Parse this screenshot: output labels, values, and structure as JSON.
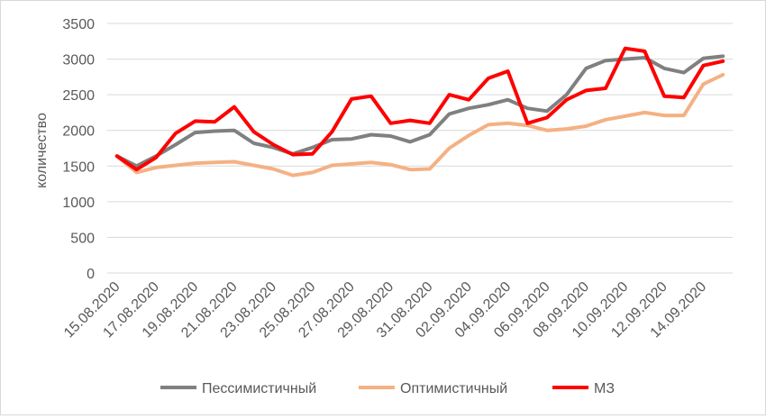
{
  "chart_data": {
    "type": "line",
    "ylabel": "количество",
    "ylim": [
      0,
      3500
    ],
    "yticks": [
      0,
      500,
      1000,
      1500,
      2000,
      2500,
      3000,
      3500
    ],
    "grid": true,
    "legend_position": "bottom",
    "x": [
      "15.08.2020",
      "16.08.2020",
      "17.08.2020",
      "18.08.2020",
      "19.08.2020",
      "20.08.2020",
      "21.08.2020",
      "22.08.2020",
      "23.08.2020",
      "24.08.2020",
      "25.08.2020",
      "26.08.2020",
      "27.08.2020",
      "28.08.2020",
      "29.08.2020",
      "30.08.2020",
      "31.08.2020",
      "01.09.2020",
      "02.09.2020",
      "03.09.2020",
      "04.09.2020",
      "05.09.2020",
      "06.09.2020",
      "07.09.2020",
      "08.09.2020",
      "09.09.2020",
      "10.09.2020",
      "11.09.2020",
      "12.09.2020",
      "13.09.2020",
      "14.09.2020",
      "15.09.2020"
    ],
    "xticks": [
      "15.08.2020",
      "17.08.2020",
      "19.08.2020",
      "21.08.2020",
      "23.08.2020",
      "25.08.2020",
      "27.08.2020",
      "29.08.2020",
      "31.08.2020",
      "02.09.2020",
      "04.09.2020",
      "06.09.2020",
      "08.09.2020",
      "10.09.2020",
      "12.09.2020",
      "14.09.2020"
    ],
    "series": [
      {
        "name": "Пессимистичный",
        "color": "#808080",
        "values": [
          1640,
          1500,
          1640,
          1800,
          1970,
          1990,
          2000,
          1820,
          1760,
          1670,
          1760,
          1870,
          1880,
          1940,
          1920,
          1840,
          1940,
          2230,
          2310,
          2360,
          2430,
          2310,
          2270,
          2500,
          2870,
          2980,
          3000,
          3020,
          2870,
          2810,
          3010,
          3040
        ]
      },
      {
        "name": "Оптимистичный",
        "color": "#f4b183",
        "values": [
          1640,
          1410,
          1480,
          1510,
          1540,
          1550,
          1560,
          1510,
          1460,
          1370,
          1410,
          1510,
          1530,
          1550,
          1520,
          1450,
          1460,
          1750,
          1930,
          2080,
          2100,
          2070,
          2000,
          2020,
          2060,
          2150,
          2200,
          2250,
          2210,
          2210,
          2650,
          2780
        ]
      },
      {
        "name": "МЗ",
        "color": "#ff0000",
        "values": [
          1640,
          1450,
          1620,
          1960,
          2130,
          2120,
          2330,
          1980,
          1800,
          1660,
          1670,
          1980,
          2440,
          2480,
          2100,
          2140,
          2100,
          2500,
          2430,
          2730,
          2830,
          2100,
          2180,
          2430,
          2560,
          2590,
          3150,
          3110,
          2480,
          2460,
          2910,
          2970
        ]
      }
    ]
  }
}
